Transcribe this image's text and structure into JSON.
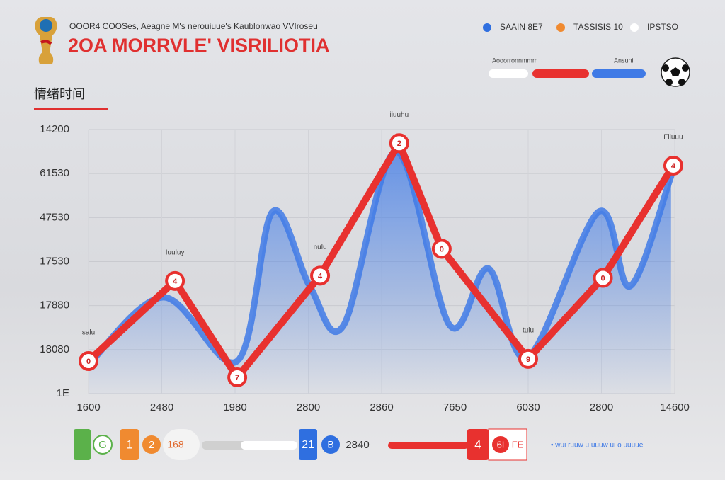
{
  "chart_data": {
    "type": "line",
    "title": "2OA MORRVLE' VISRILIOTIA",
    "subtitle": "OOOR4 COOSes, Aeagne M's nerouiuue's Kaublonwao VVIroseu",
    "ylabel": "情绪时间",
    "legend": [
      {
        "label": "SAAIN 8E7",
        "color": "#2f6fe0"
      },
      {
        "label": "TASSISIS 10",
        "color": "#f08a30"
      },
      {
        "label": "IPSTSO",
        "color": "#ffffff"
      }
    ],
    "top_notes": [
      "Aooorronnmmm",
      "Ansuni"
    ],
    "xlim": [
      0,
      8
    ],
    "xticks": [
      {
        "value": 0,
        "label": "1600"
      },
      {
        "value": 1,
        "label": "2480"
      },
      {
        "value": 2,
        "label": "1980"
      },
      {
        "value": 3,
        "label": "2800"
      },
      {
        "value": 4,
        "label": "2860"
      },
      {
        "value": 5,
        "label": "7650"
      },
      {
        "value": 6,
        "label": "6030"
      },
      {
        "value": 7,
        "label": "2800"
      },
      {
        "value": 8,
        "label": "14600"
      }
    ],
    "ylim": [
      0,
      6
    ],
    "yticks": [
      {
        "value": 0,
        "label": "1E"
      },
      {
        "value": 1,
        "label": "18080"
      },
      {
        "value": 2,
        "label": "17880"
      },
      {
        "value": 3,
        "label": "17530"
      },
      {
        "value": 4,
        "label": "47530"
      },
      {
        "value": 5,
        "label": "61530"
      },
      {
        "value": 6,
        "label": "14200"
      }
    ],
    "grid": true,
    "series": [
      {
        "color": "#3f7ae6",
        "smooth": true,
        "area": true,
        "x": [
          0,
          1.02,
          2.03,
          2.51,
          3.02,
          3.48,
          4.2,
          4.93,
          5.46,
          5.99,
          6.96,
          7.39,
          7.95
        ],
        "values": [
          0.66,
          2.19,
          0.74,
          4.13,
          2.44,
          1.55,
          5.5,
          1.55,
          2.84,
          0.82,
          4.13,
          2.44,
          4.94
        ]
      },
      {
        "color": "#e8312f",
        "smooth": false,
        "area": false,
        "x": [
          0,
          1.18,
          2.03,
          3.16,
          4.24,
          4.82,
          6.0,
          7.02,
          7.98
        ],
        "values": [
          0.74,
          2.56,
          0.37,
          2.68,
          5.69,
          3.29,
          0.79,
          2.63,
          5.18
        ],
        "point_labels": [
          "0",
          "4",
          "7",
          "4",
          "2",
          "0",
          "9",
          "0",
          "4"
        ],
        "annotations": [
          "salu",
          "Iuuluy",
          null,
          "nulu",
          "iiuuhu",
          null,
          "tulu",
          null,
          "Fiiuuu"
        ]
      }
    ]
  },
  "controls": {
    "green": "G",
    "orange_box": "1",
    "orange_circle": "2",
    "orange_text": "168",
    "blue_box": "21",
    "blue_circle": "B",
    "blue_text": "2840",
    "red_box": "4",
    "red_circle": "6I",
    "red_text": "FE",
    "note": "• wui ruuw u uuuw ui o uuuue"
  }
}
